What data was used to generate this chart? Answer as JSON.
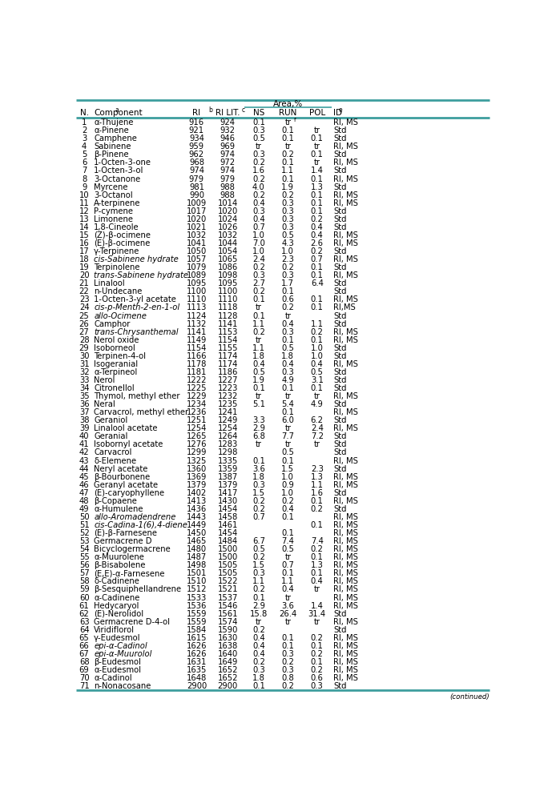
{
  "col_headers": [
    "N.",
    "Component",
    "RI",
    "RI LIT.",
    "NS",
    "RUN",
    "POL",
    "ID"
  ],
  "col_header_sups": [
    "",
    "a",
    "b",
    "c",
    "",
    "",
    "",
    "e"
  ],
  "area_label": "Area,%",
  "rows": [
    [
      "1",
      "α-Thujene",
      "916",
      "924",
      "0.1",
      "tr",
      "",
      "RI, MS",
      "f"
    ],
    [
      "2",
      "α-Pinene",
      "921",
      "932",
      "0.3",
      "0.1",
      "tr",
      "Std",
      ""
    ],
    [
      "3",
      "Camphene",
      "934",
      "946",
      "0.5",
      "0.1",
      "0.1",
      "Std",
      ""
    ],
    [
      "4",
      "Sabinene",
      "959",
      "969",
      "tr",
      "tr",
      "tr",
      "RI, MS",
      ""
    ],
    [
      "5",
      "β-Pinene",
      "962",
      "974",
      "0.3",
      "0.2",
      "0.1",
      "Std",
      ""
    ],
    [
      "6",
      "1-Octen-3-one",
      "968",
      "972",
      "0.2",
      "0.1",
      "tr",
      "RI, MS",
      ""
    ],
    [
      "7",
      "1-Octen-3-ol",
      "974",
      "974",
      "1.6",
      "1.1",
      "1.4",
      "Std",
      ""
    ],
    [
      "8",
      "3-Octanone",
      "979",
      "979",
      "0.2",
      "0.1",
      "0.1",
      "RI, MS",
      ""
    ],
    [
      "9",
      "Myrcene",
      "981",
      "988",
      "4.0",
      "1.9",
      "1.3",
      "Std",
      ""
    ],
    [
      "10",
      "3-Octanol",
      "990",
      "988",
      "0.2",
      "0.2",
      "0.1",
      "RI, MS",
      ""
    ],
    [
      "11",
      "A-terpinene",
      "1009",
      "1014",
      "0.4",
      "0.3",
      "0.1",
      "RI, MS",
      ""
    ],
    [
      "12",
      "P-cymene",
      "1017",
      "1020",
      "0.3",
      "0.3",
      "0.1",
      "Std",
      ""
    ],
    [
      "13",
      "Limonene",
      "1020",
      "1024",
      "0.4",
      "0.3",
      "0.2",
      "Std",
      ""
    ],
    [
      "14",
      "1,8-Cineole",
      "1021",
      "1026",
      "0.7",
      "0.3",
      "0.4",
      "Std",
      ""
    ],
    [
      "15",
      "(Z)-β-ocimene",
      "1032",
      "1032",
      "1.0",
      "0.5",
      "0.4",
      "RI, MS",
      ""
    ],
    [
      "16",
      "(E)-β-ocimene",
      "1041",
      "1044",
      "7.0",
      "4.3",
      "2.6",
      "RI, MS",
      ""
    ],
    [
      "17",
      "γ-Terpinene",
      "1050",
      "1054",
      "1.0",
      "1.0",
      "0.2",
      "Std",
      ""
    ],
    [
      "18",
      "cis-Sabinene hydrate",
      "1057",
      "1065",
      "2.4",
      "2.3",
      "0.7",
      "RI, MS",
      ""
    ],
    [
      "19",
      "Terpinolene",
      "1079",
      "1086",
      "0.2",
      "0.2",
      "0.1",
      "Std",
      ""
    ],
    [
      "20",
      "trans-Sabinene hydrate",
      "1089",
      "1098",
      "0.3",
      "0.3",
      "0.1",
      "RI, MS",
      ""
    ],
    [
      "21",
      "Linalool",
      "1095",
      "1095",
      "2.7",
      "1.7",
      "6.4",
      "Std",
      ""
    ],
    [
      "22",
      "n-Undecane",
      "1100",
      "1100",
      "0.2",
      "0.1",
      "",
      "Std",
      ""
    ],
    [
      "23",
      "1-Octen-3-yl acetate",
      "1110",
      "1110",
      "0.1",
      "0.6",
      "0.1",
      "RI, MS",
      ""
    ],
    [
      "24",
      "cis-p-Menth-2-en-1-ol",
      "1113",
      "1118",
      "tr",
      "0.2",
      "0.1",
      "RI,MS",
      ""
    ],
    [
      "25",
      "allo-Ocimene",
      "1124",
      "1128",
      "0.1",
      "tr",
      "",
      "Std",
      ""
    ],
    [
      "26",
      "Camphor",
      "1132",
      "1141",
      "1.1",
      "0.4",
      "1.1",
      "Std",
      ""
    ],
    [
      "27",
      "trans-Chrysanthemal",
      "1141",
      "1153",
      "0.2",
      "0.3",
      "0.2",
      "RI, MS",
      ""
    ],
    [
      "28",
      "Nerol oxide",
      "1149",
      "1154",
      "tr",
      "0.1",
      "0.1",
      "RI, MS",
      ""
    ],
    [
      "29",
      "Isoborneol",
      "1154",
      "1155",
      "1.1",
      "0.5",
      "1.0",
      "Std",
      ""
    ],
    [
      "30",
      "Terpinen-4-ol",
      "1166",
      "1174",
      "1.8",
      "1.8",
      "1.0",
      "Std",
      ""
    ],
    [
      "31",
      "Isogeranial",
      "1178",
      "1174",
      "0.4",
      "0.4",
      "0.4",
      "RI, MS",
      ""
    ],
    [
      "32",
      "α-Terpineol",
      "1181",
      "1186",
      "0.5",
      "0.3",
      "0.5",
      "Std",
      ""
    ],
    [
      "33",
      "Nerol",
      "1222",
      "1227",
      "1.9",
      "4.9",
      "3.1",
      "Std",
      ""
    ],
    [
      "34",
      "Citronellol",
      "1225",
      "1223",
      "0.1",
      "0.1",
      "0.1",
      "Std",
      ""
    ],
    [
      "35",
      "Thymol, methyl ether",
      "1229",
      "1232",
      "tr",
      "tr",
      "tr",
      "RI, MS",
      ""
    ],
    [
      "36",
      "Neral",
      "1234",
      "1235",
      "5.1",
      "5.4",
      "4.9",
      "Std",
      ""
    ],
    [
      "37",
      "Carvacrol, methyl ether",
      "1236",
      "1241",
      "",
      "0.1",
      "",
      "RI, MS",
      ""
    ],
    [
      "38",
      "Geraniol",
      "1251",
      "1249",
      "3.3",
      "6.0",
      "6.2",
      "Std",
      ""
    ],
    [
      "39",
      "Linalool acetate",
      "1254",
      "1254",
      "2.9",
      "tr",
      "2.4",
      "RI, MS",
      ""
    ],
    [
      "40",
      "Geranial",
      "1265",
      "1264",
      "6.8",
      "7.7",
      "7.2",
      "Std",
      ""
    ],
    [
      "41",
      "Isobornyl acetate",
      "1276",
      "1283",
      "tr",
      "tr",
      "tr",
      "Std",
      ""
    ],
    [
      "42",
      "Carvacrol",
      "1299",
      "1298",
      "",
      "0.5",
      "",
      "Std",
      ""
    ],
    [
      "43",
      "δ-Elemene",
      "1325",
      "1335",
      "0.1",
      "0.1",
      "",
      "RI, MS",
      ""
    ],
    [
      "44",
      "Neryl acetate",
      "1360",
      "1359",
      "3.6",
      "1.5",
      "2.3",
      "Std",
      ""
    ],
    [
      "45",
      "β-Bourbonene",
      "1369",
      "1387",
      "1.8",
      "1.0",
      "1.3",
      "RI, MS",
      ""
    ],
    [
      "46",
      "Geranyl acetate",
      "1379",
      "1379",
      "0.3",
      "0.9",
      "1.1",
      "RI, MS",
      ""
    ],
    [
      "47",
      "(E)-caryophyllene",
      "1402",
      "1417",
      "1.5",
      "1.0",
      "1.6",
      "Std",
      ""
    ],
    [
      "48",
      "β-Copaene",
      "1413",
      "1430",
      "0.2",
      "0.2",
      "0.1",
      "RI, MS",
      ""
    ],
    [
      "49",
      "α-Humulene",
      "1436",
      "1454",
      "0.2",
      "0.4",
      "0.2",
      "Std",
      ""
    ],
    [
      "50",
      "allo-Aromadendrene",
      "1443",
      "1458",
      "0.7",
      "0.1",
      "",
      "RI, MS",
      ""
    ],
    [
      "51",
      "cis-Cadina-1(6),4-diene",
      "1449",
      "1461",
      "",
      "",
      "0.1",
      "RI, MS",
      ""
    ],
    [
      "52",
      "(E)-β-Farnesene",
      "1450",
      "1454",
      "",
      "0.1",
      "",
      "RI, MS",
      ""
    ],
    [
      "53",
      "Germacrene D",
      "1465",
      "1484",
      "6.7",
      "7.4",
      "7.4",
      "RI, MS",
      ""
    ],
    [
      "54",
      "Bicyclogermacrene",
      "1480",
      "1500",
      "0.5",
      "0.5",
      "0.2",
      "RI, MS",
      ""
    ],
    [
      "55",
      "α-Muurolene",
      "1487",
      "1500",
      "0.2",
      "tr",
      "0.1",
      "RI, MS",
      ""
    ],
    [
      "56",
      "β-Bisabolene",
      "1498",
      "1505",
      "1.5",
      "0.7",
      "1.3",
      "RI, MS",
      ""
    ],
    [
      "57",
      "(E,E)-α-Farnesene",
      "1501",
      "1505",
      "0.3",
      "0.1",
      "0.1",
      "RI, MS",
      ""
    ],
    [
      "58",
      "δ-Cadinene",
      "1510",
      "1522",
      "1.1",
      "1.1",
      "0.4",
      "RI, MS",
      ""
    ],
    [
      "59",
      "β-Sesquiphellandrene",
      "1512",
      "1521",
      "0.2",
      "0.4",
      "tr",
      "RI, MS",
      ""
    ],
    [
      "60",
      "α-Cadinene",
      "1533",
      "1537",
      "0.1",
      "tr",
      "",
      "RI, MS",
      ""
    ],
    [
      "61",
      "Hedycaryol",
      "1536",
      "1546",
      "2.9",
      "3.6",
      "1.4",
      "RI, MS",
      ""
    ],
    [
      "62",
      "(E)-Nerolidol",
      "1559",
      "1561",
      "15.8",
      "26.4",
      "31.4",
      "Std",
      ""
    ],
    [
      "63",
      "Germacrene D-4-ol",
      "1559",
      "1574",
      "tr",
      "tr",
      "tr",
      "RI, MS",
      ""
    ],
    [
      "64",
      "Viridiflorol",
      "1584",
      "1590",
      "0.2",
      "",
      "",
      "Std",
      ""
    ],
    [
      "65",
      "γ-Eudesmol",
      "1615",
      "1630",
      "0.4",
      "0.1",
      "0.2",
      "RI, MS",
      ""
    ],
    [
      "66",
      "epi-α-Cadinol",
      "1626",
      "1638",
      "0.4",
      "0.1",
      "0.1",
      "RI, MS",
      ""
    ],
    [
      "67",
      "epi-α-Muurolol",
      "1626",
      "1640",
      "0.4",
      "0.3",
      "0.2",
      "RI, MS",
      ""
    ],
    [
      "68",
      "β-Eudesmol",
      "1631",
      "1649",
      "0.2",
      "0.2",
      "0.1",
      "RI, MS",
      ""
    ],
    [
      "69",
      "α-Eudesmol",
      "1635",
      "1652",
      "0.3",
      "0.3",
      "0.2",
      "RI, MS",
      ""
    ],
    [
      "70",
      "α-Cadinol",
      "1648",
      "1652",
      "1.8",
      "0.8",
      "0.6",
      "RI, MS",
      ""
    ],
    [
      "71",
      "n-Nonacosane",
      "2900",
      "2900",
      "0.1",
      "0.2",
      "0.3",
      "Std",
      ""
    ]
  ],
  "header_line_color": "#3d9e9e",
  "bg_color": "#ffffff",
  "font_size": 7.2,
  "header_font_size": 7.5
}
